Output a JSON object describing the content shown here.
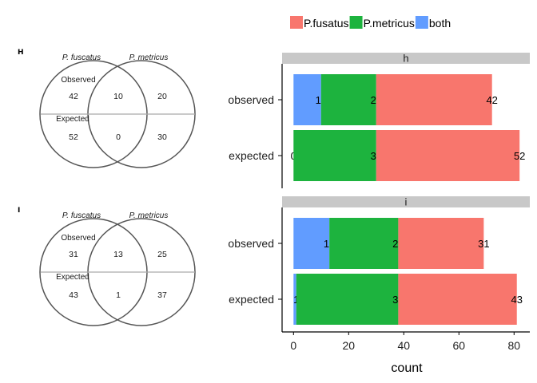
{
  "colors": {
    "P.fusatus": "#F8766D",
    "P.metricus": "#1DB33E",
    "both": "#619CFF",
    "strip": "#C8C8C8",
    "axis": "#000000"
  },
  "chart_data": {
    "type": "bar",
    "orientation": "horizontal",
    "stacked": true,
    "xlabel": "count",
    "xlim": [
      0,
      82
    ],
    "xticks": [
      0,
      20,
      40,
      60,
      80
    ],
    "legend": {
      "placement": "top",
      "entries": [
        "P.fusatus",
        "P.metricus",
        "both"
      ]
    },
    "facets": [
      {
        "label": "h",
        "categories": [
          "observed",
          "expected"
        ],
        "series": [
          {
            "name": "both",
            "values": [
              10,
              0
            ]
          },
          {
            "name": "P.metricus",
            "values": [
              20,
              30
            ]
          },
          {
            "name": "P.fusatus",
            "values": [
              42,
              52
            ]
          }
        ]
      },
      {
        "label": "i",
        "categories": [
          "observed",
          "expected"
        ],
        "series": [
          {
            "name": "both",
            "values": [
              13,
              1
            ]
          },
          {
            "name": "P.metricus",
            "values": [
              25,
              37
            ]
          },
          {
            "name": "P.fusatus",
            "values": [
              31,
              43
            ]
          }
        ]
      }
    ]
  },
  "venn_panels": [
    {
      "panel_letter": "H",
      "left_title": "P. fuscatus",
      "right_title": "P. metricus",
      "observed_label": "Observed",
      "expected_label": "Expected",
      "observed": {
        "left": "42",
        "overlap": "10",
        "right": "20"
      },
      "expected": {
        "left": "52",
        "overlap": "0",
        "right": "30"
      }
    },
    {
      "panel_letter": "I",
      "left_title": "P. fuscatus",
      "right_title": "P. metricus",
      "observed_label": "Observed",
      "expected_label": "Expected",
      "observed": {
        "left": "31",
        "overlap": "13",
        "right": "25"
      },
      "expected": {
        "left": "43",
        "overlap": "1",
        "right": "37"
      }
    }
  ]
}
